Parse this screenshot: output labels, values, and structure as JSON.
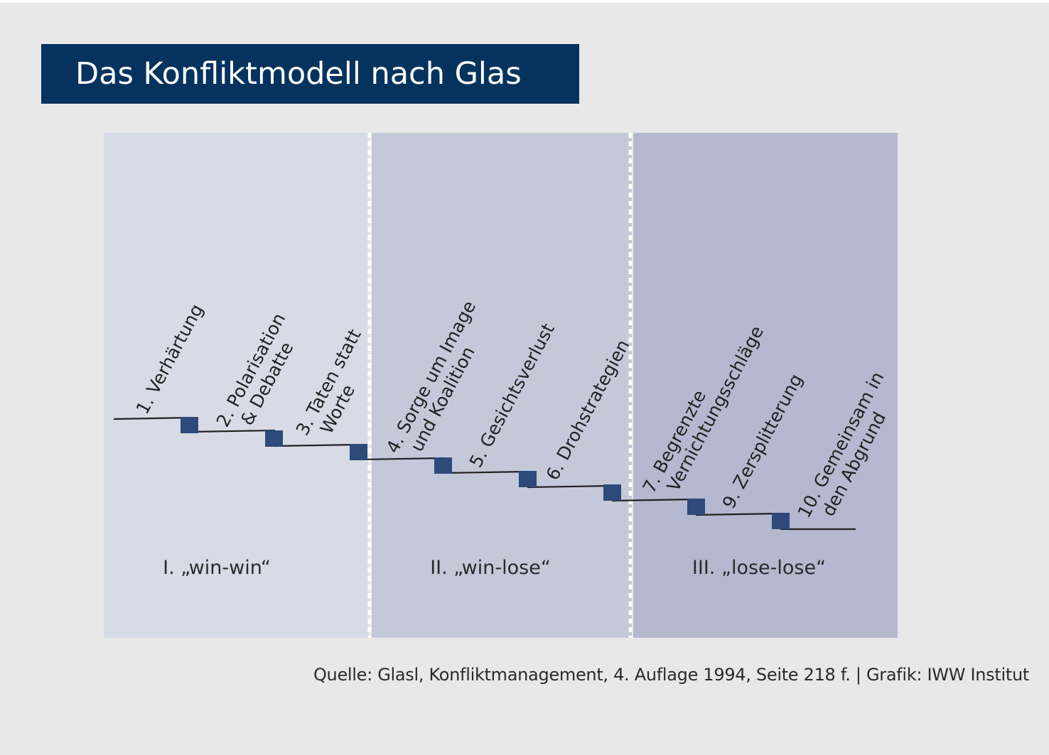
{
  "title": "Das Konfliktmodell nach Glas",
  "phases": [
    {
      "label": "I. „win-win“",
      "color": "#d7dbe6"
    },
    {
      "label": "II. „win-lose“",
      "color": "#c4c9da"
    },
    {
      "label": "III. „lose-lose“",
      "color": "#b4b9d0"
    }
  ],
  "stages": [
    {
      "lines": [
        "1. Verhärtung"
      ]
    },
    {
      "lines": [
        "2. Polarisation",
        "& Debatte"
      ]
    },
    {
      "lines": [
        "3. Taten statt",
        "Worte"
      ]
    },
    {
      "lines": [
        "4. Sorge um Image",
        "und Koalition"
      ]
    },
    {
      "lines": [
        "5. Gesichtsverlust"
      ]
    },
    {
      "lines": [
        "6. Drohstrategien"
      ]
    },
    {
      "lines": [
        "7. Begrenzte",
        "Vernichtungsschläge"
      ]
    },
    {
      "lines": [
        "9. Zersplitterung"
      ]
    },
    {
      "lines": [
        "10. Gemeinsam in",
        "den Abgrund"
      ]
    }
  ],
  "source": "Quelle: Glasl, Konfliktmanagement, 4. Auflage 1994, Seite 218 f. | Grafik: IWW Institut",
  "colors": {
    "title_background": "#06335e",
    "step_marker": "#2d4a7a",
    "step_line": "#222222",
    "divider": "#ffffff",
    "page_background": "#e8e8e8"
  }
}
